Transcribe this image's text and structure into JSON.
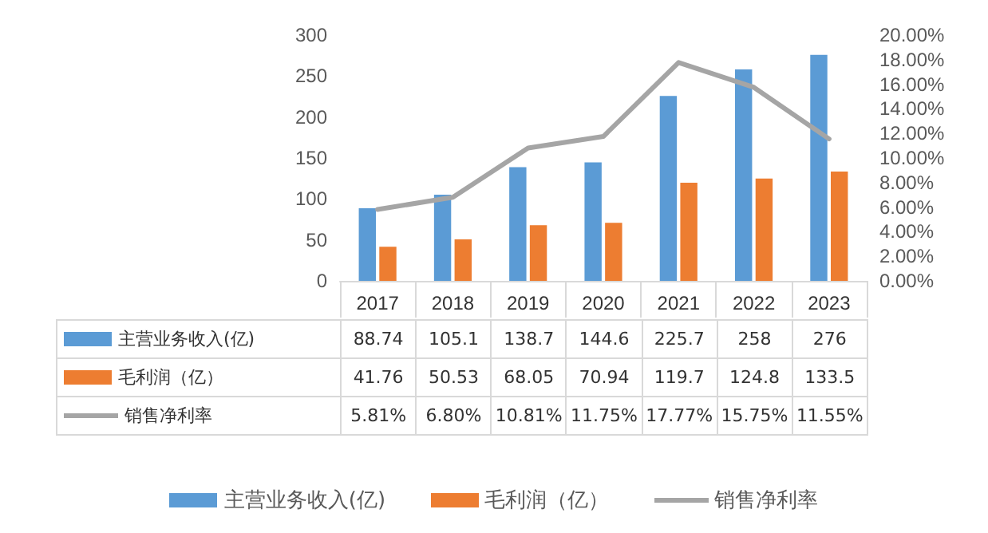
{
  "chart_data": {
    "type": "bar",
    "categories": [
      "2017",
      "2018",
      "2019",
      "2020",
      "2021",
      "2022",
      "2023"
    ],
    "series": [
      {
        "name": "主营业务收入(亿)",
        "color": "#5b9bd5",
        "values": [
          88.74,
          105.1,
          138.7,
          144.6,
          225.7,
          258,
          276
        ],
        "value_labels": [
          "88.74",
          "105.1",
          "138.7",
          "144.6",
          "225.7",
          "258",
          "276"
        ]
      },
      {
        "name": "毛利润（亿）",
        "color": "#ed7d31",
        "values": [
          41.76,
          50.53,
          68.05,
          70.94,
          119.7,
          124.8,
          133.5
        ],
        "value_labels": [
          "41.76",
          "50.53",
          "68.05",
          "70.94",
          "119.7",
          "124.8",
          "133.5"
        ]
      },
      {
        "name": "销售净利率",
        "type": "line",
        "axis": "y2",
        "color": "#a5a5a5",
        "values": [
          5.81,
          6.8,
          10.81,
          11.75,
          17.77,
          15.75,
          11.55
        ],
        "value_labels": [
          "5.81%",
          "6.80%",
          "10.81%",
          "11.75%",
          "17.77%",
          "15.75%",
          "11.55%"
        ]
      }
    ],
    "ylim": [
      0,
      300
    ],
    "yticks": [
      0,
      50,
      100,
      150,
      200,
      250,
      300
    ],
    "y2lim": [
      0,
      20
    ],
    "y2ticks": [
      {
        "value": 0,
        "label": "0.00%"
      },
      {
        "value": 2,
        "label": "2.00%"
      },
      {
        "value": 4,
        "label": "4.00%"
      },
      {
        "value": 6,
        "label": "6.00%"
      },
      {
        "value": 8,
        "label": "8.00%"
      },
      {
        "value": 10,
        "label": "10.00%"
      },
      {
        "value": 12,
        "label": "12.00%"
      },
      {
        "value": 14,
        "label": "14.00%"
      },
      {
        "value": 16,
        "label": "16.00%"
      },
      {
        "value": 18,
        "label": "18.00%"
      },
      {
        "value": 20,
        "label": "20.00%"
      }
    ],
    "legend": "bottom",
    "line_style": "solid",
    "marker": "none"
  }
}
